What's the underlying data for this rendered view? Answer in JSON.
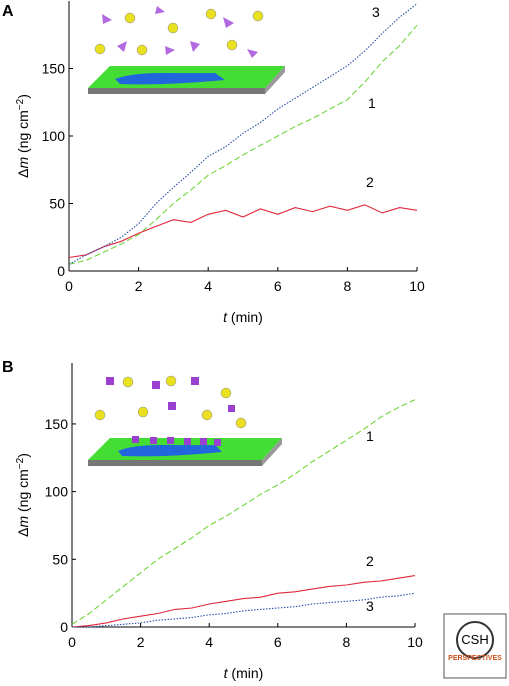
{
  "chart_data": [
    {
      "type": "line",
      "panel": "A",
      "x": [
        0,
        0.5,
        1,
        1.5,
        2,
        2.5,
        3,
        3.5,
        4,
        4.5,
        5,
        5.5,
        6,
        6.5,
        7,
        7.5,
        8,
        8.5,
        9,
        9.5,
        10
      ],
      "series": [
        {
          "name": "1",
          "color": "#6fd63a",
          "values": [
            5,
            8,
            14,
            20,
            27,
            38,
            50,
            60,
            71,
            78,
            86,
            93,
            100,
            107,
            113,
            120,
            127,
            140,
            155,
            167,
            182
          ]
        },
        {
          "name": "2",
          "color": "#e0283c",
          "values": [
            10,
            12,
            18,
            22,
            28,
            33,
            38,
            36,
            42,
            45,
            40,
            46,
            42,
            47,
            44,
            48,
            45,
            49,
            43,
            47,
            45
          ]
        },
        {
          "name": "3",
          "color": "#2a4fa8",
          "values": [
            5,
            12,
            18,
            25,
            35,
            50,
            62,
            73,
            85,
            92,
            102,
            110,
            120,
            128,
            136,
            144,
            152,
            163,
            176,
            188,
            198
          ]
        }
      ],
      "xlim": [
        0,
        10
      ],
      "xticks": [
        0,
        2,
        4,
        6,
        8,
        10
      ],
      "ylim": [
        0,
        200
      ],
      "yticks": [
        0,
        50,
        100,
        150
      ],
      "x_label": [
        "t",
        " (min)"
      ],
      "y_label": [
        "Δ",
        "m",
        " (ng cm",
        "−2",
        ")"
      ]
    },
    {
      "type": "line",
      "panel": "B",
      "x": [
        0,
        0.5,
        1,
        1.5,
        2,
        2.5,
        3,
        3.5,
        4,
        4.5,
        5,
        5.5,
        6,
        6.5,
        7,
        7.5,
        8,
        8.5,
        9,
        9.5,
        10
      ],
      "series": [
        {
          "name": "1",
          "color": "#6fd63a",
          "values": [
            2,
            10,
            20,
            30,
            40,
            50,
            58,
            66,
            75,
            82,
            90,
            98,
            105,
            113,
            122,
            130,
            138,
            146,
            155,
            162,
            168
          ]
        },
        {
          "name": "2",
          "color": "#e0283c",
          "values": [
            0,
            1,
            3,
            6,
            8,
            10,
            13,
            14,
            17,
            19,
            21,
            22,
            25,
            26,
            28,
            30,
            31,
            33,
            34,
            36,
            38
          ]
        },
        {
          "name": "3",
          "color": "#2a4fa8",
          "values": [
            0,
            0,
            1,
            2,
            3,
            5,
            6,
            7,
            9,
            10,
            12,
            13,
            14,
            15,
            17,
            18,
            19,
            20,
            22,
            23,
            25
          ]
        }
      ],
      "xlim": [
        0,
        10
      ],
      "xticks": [
        0,
        2,
        4,
        6,
        8,
        10
      ],
      "ylim": [
        0,
        195
      ],
      "yticks": [
        0,
        50,
        100,
        150
      ],
      "x_label": [
        "t",
        " (min)"
      ],
      "y_label": [
        "Δ",
        "m",
        " (ng cm",
        "−2",
        ")"
      ]
    }
  ],
  "logo": {
    "line1": "CSH",
    "line2": "PERSPECTIVES"
  }
}
